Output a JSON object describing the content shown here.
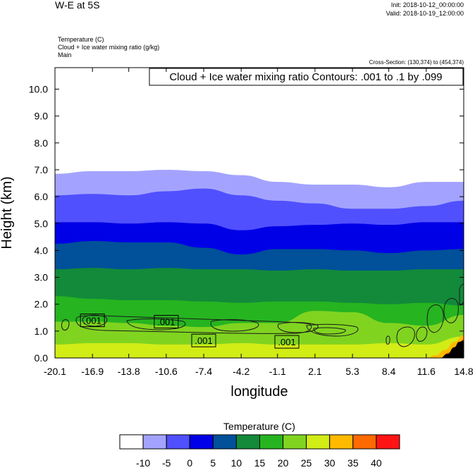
{
  "header": {
    "title": "W-E at 5S",
    "init": "Init: 2018-10-12_00:00:00",
    "valid": "Valid: 2018-10-19_12:00:00",
    "field1": "Temperature   (C)",
    "field2": "Cloud + Ice water mixing ratio   (g/kg)",
    "field3": "Main",
    "cross_section": "Cross-Section: (130,374) to (454,374)"
  },
  "chart_data": {
    "type": "heatmap",
    "title": "W-E at 5S",
    "xlabel": "longitude",
    "ylabel": "Height (km)",
    "xlim": [
      -20.1,
      14.8
    ],
    "ylim": [
      0.0,
      10.8
    ],
    "x_ticks": [
      "-20.1",
      "-16.9",
      "-13.8",
      "-10.6",
      "-7.4",
      "-4.2",
      "-1.1",
      "2.1",
      "5.3",
      "8.4",
      "11.6",
      "14.8"
    ],
    "y_ticks": [
      "0.0",
      "1.0",
      "2.0",
      "3.0",
      "4.0",
      "5.0",
      "6.0",
      "7.0",
      "8.0",
      "9.0",
      "10.0"
    ],
    "contour_info": "Cloud + Ice water mixing ratio Contours: .001 to .1 by .099",
    "contour_labels": [
      {
        "text": ".001",
        "x": -16.9,
        "y": 1.4
      },
      {
        "text": ".001",
        "x": -10.6,
        "y": 1.35
      },
      {
        "text": ".001",
        "x": -7.4,
        "y": 0.65
      },
      {
        "text": ".001",
        "x": -0.3,
        "y": 0.6
      }
    ],
    "temperature_layers": [
      {
        "level": "-10",
        "x": [
          -20.1,
          -16.9,
          -13.8,
          -10.6,
          -7.4,
          -4.2,
          -1.1,
          2.1,
          5.3,
          8.4,
          11.6,
          14.8
        ],
        "top": [
          6.85,
          6.95,
          6.95,
          7.0,
          6.95,
          6.8,
          6.55,
          6.45,
          6.45,
          6.35,
          6.55,
          6.55
        ]
      },
      {
        "level": "-5",
        "x": [
          -20.1,
          -16.9,
          -13.8,
          -10.6,
          -7.4,
          -4.2,
          -1.1,
          2.1,
          5.3,
          8.4,
          11.6,
          14.8
        ],
        "top": [
          6.05,
          6.1,
          6.05,
          6.2,
          6.3,
          6.05,
          5.85,
          5.75,
          5.55,
          5.55,
          5.65,
          5.85
        ]
      },
      {
        "level": "0",
        "x": [
          -20.1,
          -16.9,
          -13.8,
          -10.6,
          -7.4,
          -4.2,
          -1.1,
          2.1,
          5.3,
          8.4,
          11.6,
          14.8
        ],
        "top": [
          5.05,
          5.05,
          5.0,
          5.05,
          5.0,
          4.75,
          4.9,
          4.95,
          5.0,
          4.95,
          5.05,
          5.05
        ]
      },
      {
        "level": "5",
        "x": [
          -20.1,
          -16.9,
          -13.8,
          -10.6,
          -7.4,
          -4.2,
          -1.1,
          2.1,
          5.3,
          8.4,
          11.6,
          14.8
        ],
        "top": [
          4.25,
          4.35,
          4.3,
          4.3,
          4.1,
          3.85,
          4.05,
          4.05,
          4.0,
          3.9,
          4.0,
          4.05
        ]
      },
      {
        "level": "10",
        "x": [
          -20.1,
          -16.9,
          -13.8,
          -10.6,
          -7.4,
          -4.2,
          -1.1,
          2.1,
          5.3,
          8.4,
          11.6,
          14.8
        ],
        "top": [
          3.3,
          3.35,
          3.3,
          3.35,
          3.3,
          3.3,
          3.25,
          3.3,
          3.25,
          3.25,
          3.3,
          3.3
        ]
      },
      {
        "level": "15",
        "x": [
          -20.1,
          -16.9,
          -13.8,
          -10.6,
          -7.4,
          -4.2,
          -1.1,
          2.1,
          5.3,
          8.4,
          11.6,
          14.8
        ],
        "top": [
          2.3,
          2.2,
          2.15,
          2.15,
          2.1,
          2.05,
          2.1,
          2.1,
          2.05,
          2.0,
          2.05,
          1.95
        ]
      },
      {
        "level": "20",
        "x": [
          -20.1,
          -16.9,
          -13.8,
          -10.6,
          -7.4,
          -4.2,
          -1.1,
          2.1,
          5.3,
          8.4,
          11.6,
          14.8
        ],
        "top": [
          1.35,
          1.35,
          1.3,
          1.2,
          1.15,
          1.3,
          1.3,
          1.75,
          1.7,
          1.3,
          1.2,
          1.6
        ]
      },
      {
        "level": "25",
        "x": [
          -20.1,
          -16.9,
          -13.8,
          -10.6,
          -7.4,
          -4.2,
          -1.1,
          2.1,
          5.3,
          8.4,
          11.6,
          14.8
        ],
        "top": [
          0.5,
          0.55,
          0.55,
          0.5,
          0.5,
          0.55,
          0.5,
          0.5,
          0.5,
          0.55,
          0.5,
          0.8
        ]
      },
      {
        "level": "30",
        "x": [
          11.6,
          12.4,
          13.2,
          14.0,
          14.8
        ],
        "top": [
          0.0,
          0.1,
          0.3,
          0.6,
          0.85
        ]
      },
      {
        "level": "35",
        "x": [
          12.8,
          13.5,
          14.2,
          14.8
        ],
        "top": [
          0.0,
          0.2,
          0.4,
          0.7
        ]
      }
    ],
    "terrain": {
      "x": [
        12.8,
        13.4,
        14.0,
        14.4,
        14.8
      ],
      "top": [
        0.0,
        0.15,
        0.4,
        0.6,
        0.65
      ]
    },
    "colorbar": {
      "title": "Temperature  (C)",
      "labels": [
        "-10",
        "-5",
        "0",
        "5",
        "10",
        "15",
        "20",
        "25",
        "30",
        "35",
        "40"
      ],
      "colors": [
        "#ffffff",
        "#a3a3ff",
        "#5050ff",
        "#0000e6",
        "#00509a",
        "#128a3a",
        "#26b420",
        "#80d420",
        "#d2ec16",
        "#ffba00",
        "#ff6a00",
        "#ff1414"
      ]
    }
  }
}
